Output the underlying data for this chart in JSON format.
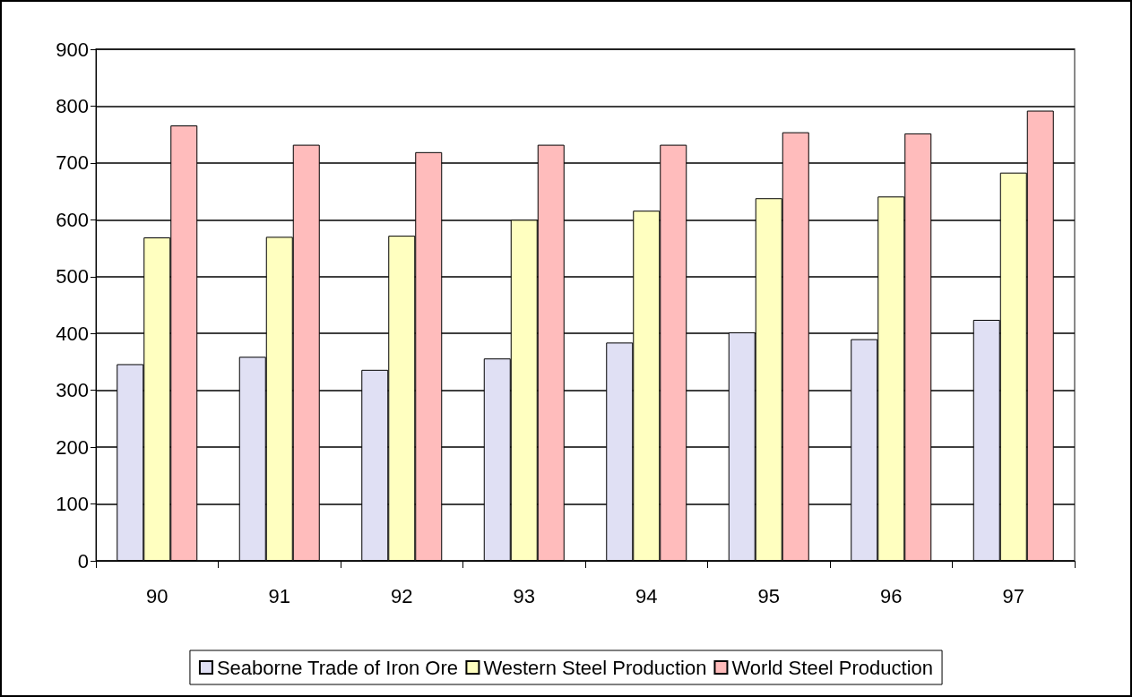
{
  "chart_data": {
    "type": "bar",
    "categories": [
      "90",
      "91",
      "92",
      "93",
      "94",
      "95",
      "96",
      "97"
    ],
    "series": [
      {
        "name": "Seaborne Trade of Iron Ore",
        "color": "#e0e0f4",
        "values": [
          346,
          359,
          336,
          356,
          384,
          402,
          390,
          424
        ]
      },
      {
        "name": "Western Steel Production",
        "color": "#ffffc0",
        "values": [
          569,
          570,
          572,
          600,
          616,
          638,
          641,
          683
        ]
      },
      {
        "name": "World Steel Production",
        "color": "#ffbcbc",
        "values": [
          766,
          732,
          719,
          732,
          732,
          754,
          752,
          792
        ]
      }
    ],
    "ylim": [
      0,
      900
    ],
    "yticks": [
      0,
      100,
      200,
      300,
      400,
      500,
      600,
      700,
      800,
      900
    ],
    "grid": "y",
    "legend": "bottom"
  }
}
